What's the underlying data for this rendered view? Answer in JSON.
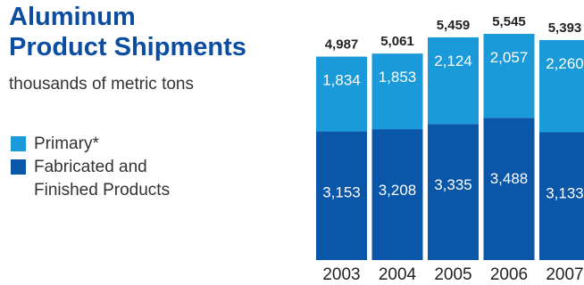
{
  "title_line1": "Aluminum",
  "title_line2": "Product Shipments",
  "subtitle": "thousands of metric tons",
  "legend": [
    {
      "label": "Primary*",
      "color": "#1a9ad8"
    },
    {
      "label": "Fabricated and Finished Products",
      "color": "#0a56a8"
    }
  ],
  "chart_data": {
    "type": "bar",
    "stacked": true,
    "categories": [
      "2003",
      "2004",
      "2005",
      "2006",
      "2007"
    ],
    "series": [
      {
        "name": "Fabricated and Finished Products",
        "values": [
          3153,
          3208,
          3335,
          3488,
          3133
        ],
        "color": "#0a56a8"
      },
      {
        "name": "Primary*",
        "values": [
          1834,
          1853,
          2124,
          2057,
          2260
        ],
        "color": "#1a9ad8"
      }
    ],
    "totals": [
      4987,
      5061,
      5459,
      5545,
      5393
    ],
    "ylim": [
      0,
      5545
    ],
    "grid": false,
    "legend_position": "left"
  }
}
